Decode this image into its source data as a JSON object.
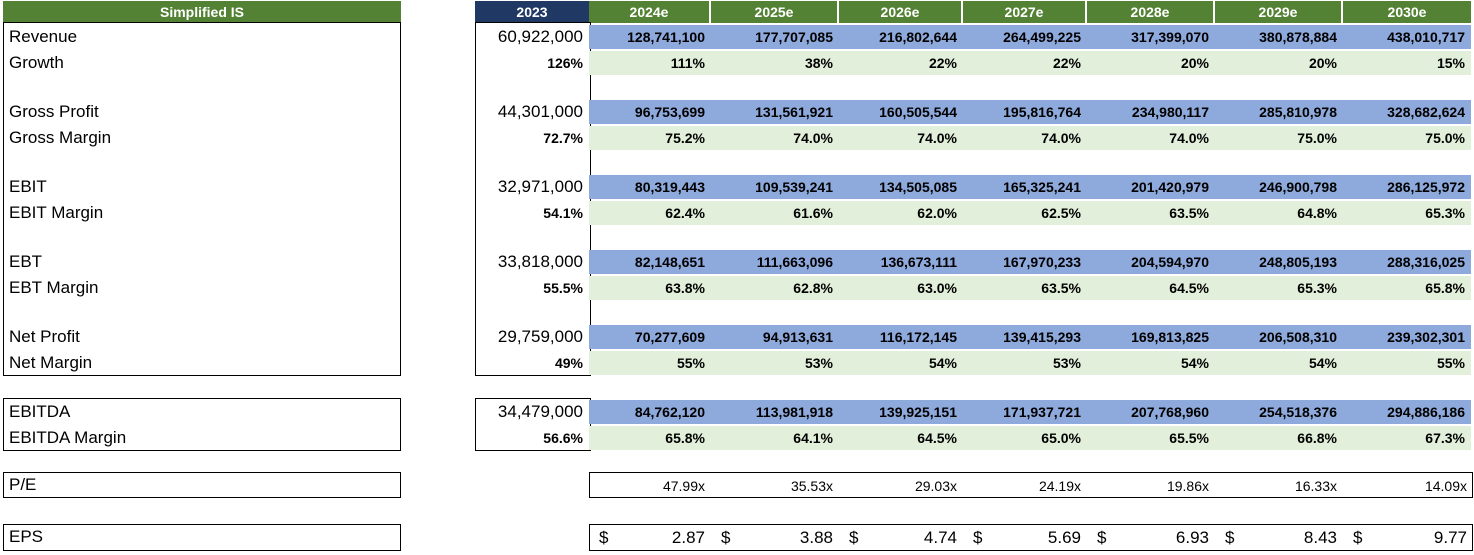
{
  "header": {
    "title": "Simplified IS",
    "base_year": "2023",
    "years": [
      "2024e",
      "2025e",
      "2026e",
      "2027e",
      "2028e",
      "2029e",
      "2030e"
    ]
  },
  "rows": [
    {
      "label": "Revenue",
      "base": "60,922,000",
      "values": [
        "128,741,100",
        "177,707,085",
        "216,802,644",
        "264,499,225",
        "317,399,070",
        "380,878,884",
        "438,010,717"
      ]
    },
    {
      "label": "Growth",
      "base": "126%",
      "values": [
        "111%",
        "38%",
        "22%",
        "22%",
        "20%",
        "20%",
        "15%"
      ]
    },
    {
      "label": "Gross Profit",
      "base": "44,301,000",
      "values": [
        "96,753,699",
        "131,561,921",
        "160,505,544",
        "195,816,764",
        "234,980,117",
        "285,810,978",
        "328,682,624"
      ]
    },
    {
      "label": "Gross Margin",
      "base": "72.7%",
      "values": [
        "75.2%",
        "74.0%",
        "74.0%",
        "74.0%",
        "74.0%",
        "75.0%",
        "75.0%"
      ]
    },
    {
      "label": "EBIT",
      "base": "32,971,000",
      "values": [
        "80,319,443",
        "109,539,241",
        "134,505,085",
        "165,325,241",
        "201,420,979",
        "246,900,798",
        "286,125,972"
      ]
    },
    {
      "label": "EBIT Margin",
      "base": "54.1%",
      "values": [
        "62.4%",
        "61.6%",
        "62.0%",
        "62.5%",
        "63.5%",
        "64.8%",
        "65.3%"
      ]
    },
    {
      "label": "EBT",
      "base": "33,818,000",
      "values": [
        "82,148,651",
        "111,663,096",
        "136,673,111",
        "167,970,233",
        "204,594,970",
        "248,805,193",
        "288,316,025"
      ]
    },
    {
      "label": "EBT Margin",
      "base": "55.5%",
      "values": [
        "63.8%",
        "62.8%",
        "63.0%",
        "63.5%",
        "64.5%",
        "65.3%",
        "65.8%"
      ]
    },
    {
      "label": "Net Profit",
      "base": "29,759,000",
      "values": [
        "70,277,609",
        "94,913,631",
        "116,172,145",
        "139,415,293",
        "169,813,825",
        "206,508,310",
        "239,302,301"
      ]
    },
    {
      "label": "Net Margin",
      "base": "49%",
      "values": [
        "55%",
        "53%",
        "54%",
        "53%",
        "54%",
        "54%",
        "55%"
      ]
    },
    {
      "label": "EBITDA",
      "base": "34,479,000",
      "values": [
        "84,762,120",
        "113,981,918",
        "139,925,151",
        "171,937,721",
        "207,768,960",
        "254,518,376",
        "294,886,186"
      ]
    },
    {
      "label": "EBITDA Margin",
      "base": "56.6%",
      "values": [
        "65.8%",
        "64.1%",
        "64.5%",
        "65.0%",
        "65.5%",
        "66.8%",
        "67.3%"
      ]
    }
  ],
  "pe": {
    "label": "P/E",
    "values": [
      "47.99x",
      "35.53x",
      "29.03x",
      "24.19x",
      "19.86x",
      "16.33x",
      "14.09x"
    ]
  },
  "eps": {
    "label": "EPS",
    "currency": "$",
    "values": [
      "2.87",
      "3.88",
      "4.74",
      "5.69",
      "6.93",
      "8.43",
      "9.77"
    ]
  },
  "colors": {
    "header_green": "#548235",
    "header_navy": "#1f3864",
    "value_blue": "#8ea9db",
    "pct_green": "#e2efda"
  }
}
